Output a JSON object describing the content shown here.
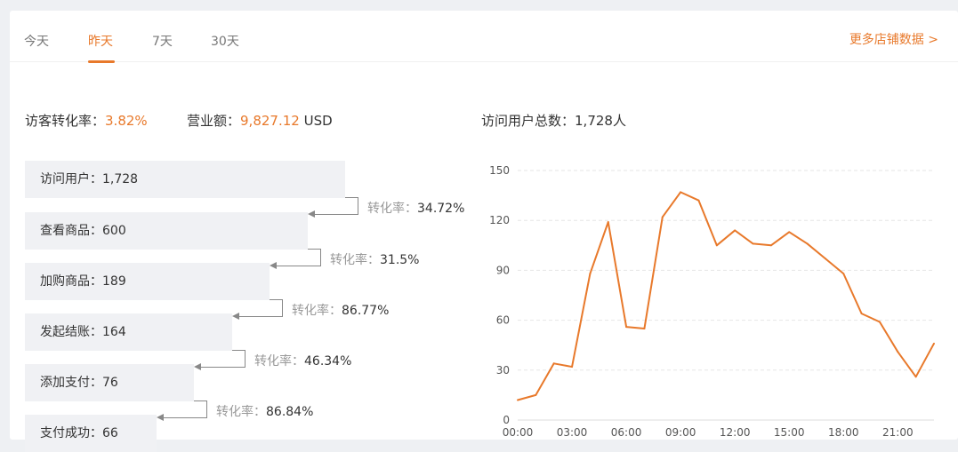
{
  "tabs": [
    {
      "label": "今天"
    },
    {
      "label": "昨天",
      "active": true
    },
    {
      "label": "7天"
    },
    {
      "label": "30天"
    }
  ],
  "more_link": "更多店铺数据 >",
  "stats": {
    "conv_label": "访客转化率：",
    "conv_value": "3.82%",
    "revenue_label": "营业额：",
    "revenue_value": "9,827.12",
    "revenue_unit": "USD",
    "visitors_label": "访问用户总数：",
    "visitors_value": "1,728人"
  },
  "funnel": {
    "steps": [
      {
        "label": "访问用户：1,728"
      },
      {
        "label": "查看商品：600"
      },
      {
        "label": "加购商品：189"
      },
      {
        "label": "发起结账：164"
      },
      {
        "label": "添加支付：76"
      },
      {
        "label": "支付成功：66"
      }
    ],
    "rate_label": "转化率：",
    "rates": [
      "34.72%",
      "31.5%",
      "86.77%",
      "46.34%",
      "86.84%"
    ]
  },
  "colors": {
    "accent": "#e8792b",
    "bar": "#f0f1f4"
  },
  "chart_data": {
    "type": "line",
    "x": [
      "00:00",
      "01:00",
      "02:00",
      "03:00",
      "04:00",
      "05:00",
      "06:00",
      "07:00",
      "08:00",
      "09:00",
      "10:00",
      "11:00",
      "12:00",
      "13:00",
      "14:00",
      "15:00",
      "16:00",
      "17:00",
      "18:00",
      "19:00",
      "20:00",
      "21:00",
      "22:00",
      "23:00"
    ],
    "values": [
      12,
      15,
      34,
      32,
      88,
      119,
      56,
      55,
      122,
      137,
      132,
      105,
      114,
      106,
      105,
      113,
      106,
      97,
      88,
      64,
      59,
      41,
      26,
      46
    ],
    "xticks": [
      "00:00",
      "03:00",
      "06:00",
      "09:00",
      "12:00",
      "15:00",
      "18:00",
      "21:00"
    ],
    "yticks": [
      "0",
      "30",
      "60",
      "90",
      "120",
      "150"
    ],
    "ylim": [
      0,
      150
    ],
    "grid": true,
    "color": "#e8792b"
  }
}
